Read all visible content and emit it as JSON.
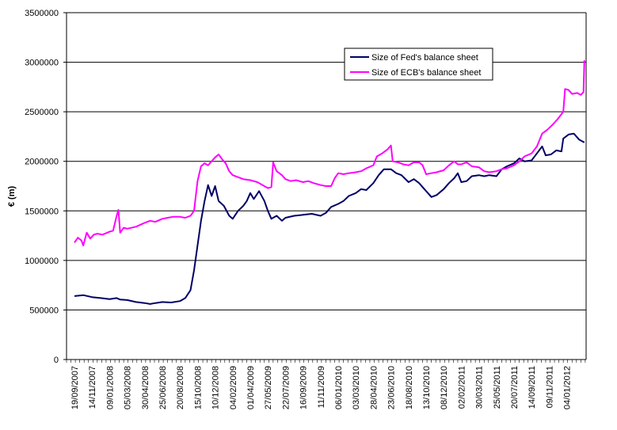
{
  "chart_data": {
    "type": "line",
    "title": "",
    "xlabel": "",
    "ylabel": "€ (m)",
    "ylim": [
      0,
      3500000
    ],
    "yticks": [
      0,
      500000,
      1000000,
      1500000,
      2000000,
      2500000,
      3000000,
      3500000
    ],
    "ytick_labels": [
      "0",
      "500000",
      "1000000",
      "1500000",
      "2000000",
      "2500000",
      "3000000",
      "3500000"
    ],
    "xticks": [
      "19/09/2007",
      "14/11/2007",
      "09/01/2008",
      "05/03/2008",
      "30/04/2008",
      "25/06/2008",
      "20/08/2008",
      "15/10/2008",
      "10/12/2008",
      "04/02/2009",
      "01/04/2009",
      "27/05/2009",
      "22/07/2009",
      "16/09/2009",
      "11/11/2009",
      "06/01/2010",
      "03/03/2010",
      "28/04/2010",
      "23/06/2010",
      "18/08/2010",
      "13/10/2010",
      "08/12/2010",
      "02/02/2011",
      "30/03/2011",
      "25/05/2011",
      "20/07/2011",
      "14/09/2011",
      "09/11/2011",
      "04/01/2012"
    ],
    "grid": "horizontal",
    "legend_position": "top-right-inside",
    "series": [
      {
        "name": "Size of Fed's balance sheet",
        "color": "#000066",
        "values": [
          [
            0,
            640000
          ],
          [
            0.5,
            650000
          ],
          [
            1,
            630000
          ],
          [
            1.5,
            620000
          ],
          [
            2,
            610000
          ],
          [
            2.4,
            620000
          ],
          [
            2.6,
            605000
          ],
          [
            3,
            600000
          ],
          [
            3.5,
            580000
          ],
          [
            4,
            570000
          ],
          [
            4.3,
            560000
          ],
          [
            4.6,
            570000
          ],
          [
            5,
            580000
          ],
          [
            5.5,
            575000
          ],
          [
            6,
            590000
          ],
          [
            6.3,
            620000
          ],
          [
            6.6,
            700000
          ],
          [
            6.8,
            900000
          ],
          [
            7,
            1150000
          ],
          [
            7.2,
            1400000
          ],
          [
            7.4,
            1600000
          ],
          [
            7.6,
            1760000
          ],
          [
            7.8,
            1650000
          ],
          [
            8,
            1750000
          ],
          [
            8.2,
            1600000
          ],
          [
            8.5,
            1550000
          ],
          [
            8.8,
            1450000
          ],
          [
            9,
            1420000
          ],
          [
            9.3,
            1500000
          ],
          [
            9.6,
            1550000
          ],
          [
            9.8,
            1600000
          ],
          [
            10,
            1680000
          ],
          [
            10.2,
            1620000
          ],
          [
            10.5,
            1700000
          ],
          [
            10.8,
            1600000
          ],
          [
            11,
            1500000
          ],
          [
            11.2,
            1420000
          ],
          [
            11.5,
            1450000
          ],
          [
            11.8,
            1400000
          ],
          [
            12,
            1430000
          ],
          [
            12.5,
            1450000
          ],
          [
            13,
            1460000
          ],
          [
            13.5,
            1470000
          ],
          [
            14,
            1450000
          ],
          [
            14.3,
            1480000
          ],
          [
            14.6,
            1540000
          ],
          [
            15,
            1570000
          ],
          [
            15.3,
            1600000
          ],
          [
            15.6,
            1650000
          ],
          [
            16,
            1680000
          ],
          [
            16.3,
            1720000
          ],
          [
            16.6,
            1710000
          ],
          [
            17,
            1780000
          ],
          [
            17.3,
            1860000
          ],
          [
            17.6,
            1920000
          ],
          [
            18,
            1920000
          ],
          [
            18.3,
            1880000
          ],
          [
            18.6,
            1860000
          ],
          [
            19,
            1790000
          ],
          [
            19.3,
            1820000
          ],
          [
            19.6,
            1780000
          ],
          [
            20,
            1700000
          ],
          [
            20.3,
            1640000
          ],
          [
            20.6,
            1660000
          ],
          [
            21,
            1720000
          ],
          [
            21.3,
            1780000
          ],
          [
            21.6,
            1830000
          ],
          [
            21.8,
            1880000
          ],
          [
            22,
            1790000
          ],
          [
            22.3,
            1800000
          ],
          [
            22.6,
            1850000
          ],
          [
            23,
            1860000
          ],
          [
            23.3,
            1850000
          ],
          [
            23.6,
            1860000
          ],
          [
            24,
            1850000
          ],
          [
            24.3,
            1920000
          ],
          [
            24.6,
            1950000
          ],
          [
            25,
            1980000
          ],
          [
            25.3,
            2030000
          ],
          [
            25.6,
            2000000
          ],
          [
            26,
            2010000
          ],
          [
            26.3,
            2080000
          ],
          [
            26.6,
            2150000
          ],
          [
            26.8,
            2060000
          ],
          [
            27.1,
            2070000
          ],
          [
            27.4,
            2110000
          ],
          [
            27.7,
            2100000
          ],
          [
            27.8,
            2230000
          ],
          [
            28.1,
            2270000
          ],
          [
            28.4,
            2280000
          ],
          [
            28.7,
            2220000
          ],
          [
            29,
            2190000
          ]
        ]
      },
      {
        "name": "Size of ECB's balance sheet",
        "color": "#ff00ff",
        "values": [
          [
            0,
            1180000
          ],
          [
            0.2,
            1230000
          ],
          [
            0.4,
            1200000
          ],
          [
            0.5,
            1150000
          ],
          [
            0.7,
            1280000
          ],
          [
            0.9,
            1220000
          ],
          [
            1.1,
            1260000
          ],
          [
            1.3,
            1270000
          ],
          [
            1.6,
            1260000
          ],
          [
            2,
            1290000
          ],
          [
            2.2,
            1300000
          ],
          [
            2.4,
            1450000
          ],
          [
            2.5,
            1510000
          ],
          [
            2.6,
            1280000
          ],
          [
            2.8,
            1330000
          ],
          [
            3,
            1320000
          ],
          [
            3.5,
            1340000
          ],
          [
            4,
            1380000
          ],
          [
            4.3,
            1400000
          ],
          [
            4.6,
            1390000
          ],
          [
            5,
            1420000
          ],
          [
            5.3,
            1430000
          ],
          [
            5.6,
            1440000
          ],
          [
            6,
            1440000
          ],
          [
            6.3,
            1430000
          ],
          [
            6.6,
            1450000
          ],
          [
            6.8,
            1500000
          ],
          [
            7,
            1800000
          ],
          [
            7.2,
            1950000
          ],
          [
            7.4,
            1980000
          ],
          [
            7.6,
            1960000
          ],
          [
            7.8,
            2000000
          ],
          [
            8,
            2040000
          ],
          [
            8.2,
            2070000
          ],
          [
            8.4,
            2020000
          ],
          [
            8.6,
            1980000
          ],
          [
            8.8,
            1900000
          ],
          [
            9,
            1860000
          ],
          [
            9.3,
            1840000
          ],
          [
            9.6,
            1820000
          ],
          [
            10,
            1810000
          ],
          [
            10.4,
            1790000
          ],
          [
            10.7,
            1760000
          ],
          [
            11,
            1730000
          ],
          [
            11.2,
            1740000
          ],
          [
            11.3,
            1990000
          ],
          [
            11.5,
            1900000
          ],
          [
            11.8,
            1860000
          ],
          [
            12,
            1820000
          ],
          [
            12.3,
            1800000
          ],
          [
            12.6,
            1810000
          ],
          [
            13,
            1790000
          ],
          [
            13.3,
            1800000
          ],
          [
            13.6,
            1780000
          ],
          [
            14,
            1760000
          ],
          [
            14.3,
            1750000
          ],
          [
            14.6,
            1750000
          ],
          [
            14.8,
            1830000
          ],
          [
            15,
            1880000
          ],
          [
            15.3,
            1870000
          ],
          [
            15.6,
            1880000
          ],
          [
            16,
            1890000
          ],
          [
            16.3,
            1900000
          ],
          [
            16.6,
            1930000
          ],
          [
            17,
            1960000
          ],
          [
            17.2,
            2050000
          ],
          [
            17.5,
            2080000
          ],
          [
            17.8,
            2120000
          ],
          [
            18,
            2160000
          ],
          [
            18.1,
            2000000
          ],
          [
            18.4,
            1990000
          ],
          [
            18.7,
            1970000
          ],
          [
            19,
            1960000
          ],
          [
            19.3,
            1990000
          ],
          [
            19.6,
            1990000
          ],
          [
            19.8,
            1960000
          ],
          [
            20,
            1870000
          ],
          [
            20.3,
            1880000
          ],
          [
            20.6,
            1890000
          ],
          [
            21,
            1910000
          ],
          [
            21.3,
            1960000
          ],
          [
            21.6,
            2000000
          ],
          [
            21.8,
            1970000
          ],
          [
            22,
            1970000
          ],
          [
            22.3,
            1990000
          ],
          [
            22.6,
            1950000
          ],
          [
            23,
            1940000
          ],
          [
            23.3,
            1900000
          ],
          [
            23.6,
            1890000
          ],
          [
            24,
            1900000
          ],
          [
            24.3,
            1920000
          ],
          [
            24.6,
            1930000
          ],
          [
            25,
            1960000
          ],
          [
            25.3,
            2000000
          ],
          [
            25.6,
            2050000
          ],
          [
            26,
            2080000
          ],
          [
            26.3,
            2150000
          ],
          [
            26.6,
            2280000
          ],
          [
            26.9,
            2320000
          ],
          [
            27.2,
            2370000
          ],
          [
            27.5,
            2430000
          ],
          [
            27.8,
            2500000
          ],
          [
            27.9,
            2730000
          ],
          [
            28.1,
            2720000
          ],
          [
            28.3,
            2680000
          ],
          [
            28.6,
            2690000
          ],
          [
            28.8,
            2670000
          ],
          [
            28.95,
            2700000
          ],
          [
            29,
            3020000
          ]
        ]
      }
    ]
  }
}
